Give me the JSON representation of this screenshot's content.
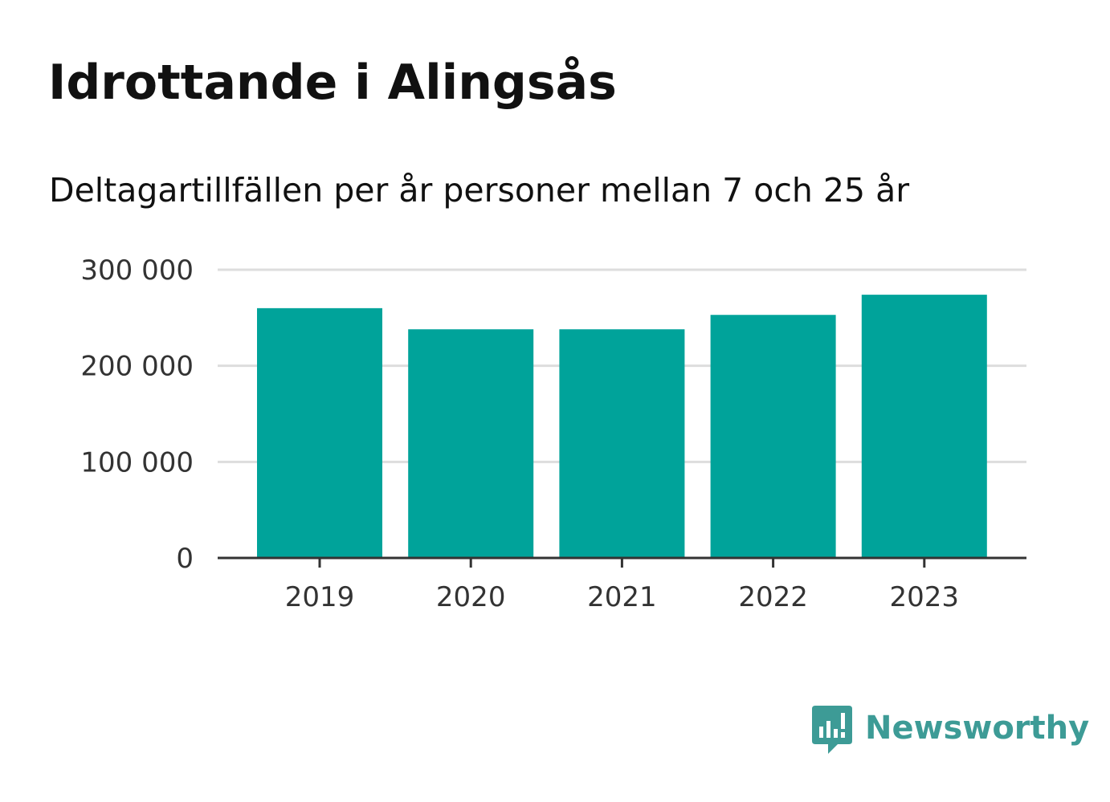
{
  "title": "Idrottande i Alingsås",
  "subtitle": "Deltagartillfällen per år personer mellan 7 och 25 år",
  "brand": {
    "name": "Newsworthy",
    "icon": "newsworthy-logo-icon",
    "color": "#3d9b96"
  },
  "colors": {
    "bar": "#00a39a",
    "grid": "#dddddd",
    "axis": "#333333"
  },
  "chart_data": {
    "type": "bar",
    "title": "Idrottande i Alingsås",
    "subtitle": "Deltagartillfällen per år personer mellan 7 och 25 år",
    "categories": [
      "2019",
      "2020",
      "2021",
      "2022",
      "2023"
    ],
    "values": [
      260000,
      238000,
      238000,
      253000,
      274000
    ],
    "ylim": [
      0,
      300000
    ],
    "yticks": [
      0,
      100000,
      200000,
      300000
    ],
    "ytick_labels": [
      "0",
      "100 000",
      "200 000",
      "300 000"
    ],
    "xlabel": "",
    "ylabel": "",
    "grid": true,
    "legend": "none"
  }
}
